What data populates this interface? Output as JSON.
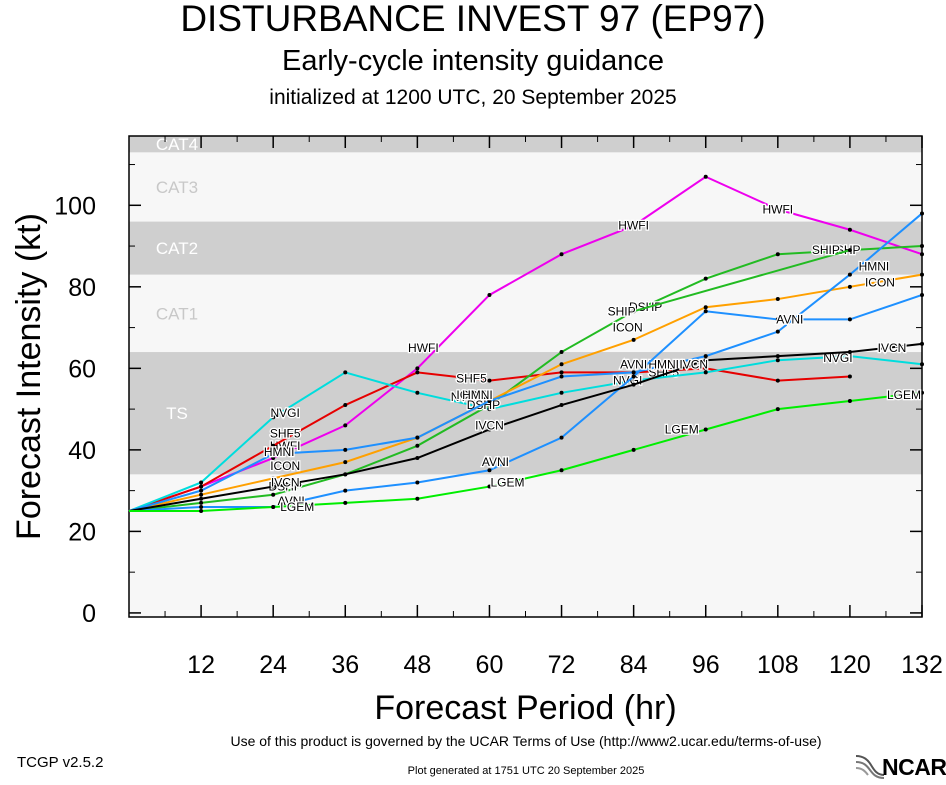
{
  "header": {
    "title": "DISTURBANCE INVEST 97 (EP97)",
    "subtitle": "Early-cycle intensity guidance",
    "init": "initialized at 1200 UTC, 20 September 2025"
  },
  "footer": {
    "terms": "Use of this product is governed by the UCAR Terms of Use (http://www2.ucar.edu/terms-of-use)",
    "version": "TCGP v2.5.2",
    "generated": "Plot generated at 1751 UTC   20 September 2025",
    "logo_text": "NCAR"
  },
  "chart_data": {
    "type": "line",
    "xlabel": "Forecast Period (hr)",
    "ylabel": "Forecast Intensity (kt)",
    "xlim": [
      0,
      132
    ],
    "ylim": [
      -1,
      117
    ],
    "x_ticks": [
      12,
      24,
      36,
      48,
      60,
      72,
      84,
      96,
      108,
      120,
      132
    ],
    "y_ticks": [
      0,
      20,
      40,
      60,
      80,
      100
    ],
    "bands": [
      {
        "label": "TS",
        "y0": 34,
        "y1": 64,
        "shade": "dark"
      },
      {
        "label": "CAT1",
        "y0": 64,
        "y1": 83,
        "shade": "light"
      },
      {
        "label": "CAT2",
        "y0": 83,
        "y1": 96,
        "shade": "dark"
      },
      {
        "label": "CAT3",
        "y0": 96,
        "y1": 113,
        "shade": "light"
      },
      {
        "label": "CAT4",
        "y0": 113,
        "y1": 117,
        "shade": "dark"
      }
    ],
    "band_colors": {
      "dark": "#cfcfcf",
      "light": "#f7f7f7"
    },
    "series": [
      {
        "name": "HWFI",
        "color": "#ee00ee",
        "x": [
          0,
          12,
          24,
          36,
          48,
          60,
          72,
          84,
          96,
          108,
          120,
          132
        ],
        "y": [
          25,
          31,
          38,
          46,
          60,
          78,
          88,
          95,
          107,
          99,
          94,
          88
        ],
        "labels": [
          [
            26,
            41
          ],
          [
            49,
            65
          ],
          [
            84,
            95
          ],
          [
            108,
            99
          ]
        ]
      },
      {
        "name": "SHF5",
        "color": "#e60000",
        "x": [
          0,
          12,
          24,
          36,
          48,
          60,
          72,
          84,
          96,
          108,
          120
        ],
        "y": [
          25,
          31,
          41,
          51,
          59,
          57,
          59,
          59,
          60,
          57,
          58
        ],
        "labels": [
          [
            26,
            44
          ],
          [
            57,
            57.5
          ],
          [
            89,
            59
          ]
        ]
      },
      {
        "name": "NVGI",
        "color": "#00dddd",
        "x": [
          0,
          12,
          24,
          36,
          48,
          60,
          72,
          84,
          96,
          108,
          120,
          132
        ],
        "y": [
          25,
          32,
          48,
          59,
          54,
          50,
          54,
          57,
          59,
          62,
          63,
          61
        ],
        "labels": [
          [
            26,
            49
          ],
          [
            56,
            53
          ],
          [
            83,
            57
          ],
          [
            118,
            62.5
          ]
        ]
      },
      {
        "name": "DSHP",
        "color": "#22bb22",
        "x": [
          0,
          12,
          24,
          36,
          48,
          60,
          72,
          84,
          96,
          108,
          120,
          132
        ],
        "y": [
          25,
          27,
          29,
          34,
          41,
          51,
          64,
          74,
          82,
          88,
          89,
          90
        ],
        "labels": [
          [
            26,
            31
          ],
          [
            59,
            51
          ],
          [
            86,
            75
          ],
          [
            119,
            89
          ]
        ]
      },
      {
        "name": "SHIP",
        "color": "#22bb22",
        "x": [
          84,
          120
        ],
        "y": [
          74,
          89
        ],
        "labels": [
          [
            82,
            74
          ],
          [
            116,
            89
          ]
        ]
      },
      {
        "name": "ICON",
        "color": "#ffa000",
        "x": [
          0,
          12,
          24,
          36,
          48,
          60,
          72,
          84,
          96,
          108,
          120,
          132
        ],
        "y": [
          25,
          29,
          33,
          37,
          43,
          52,
          61,
          67,
          75,
          77,
          80,
          83
        ],
        "labels": [
          [
            26,
            36
          ],
          [
            57,
            53.5
          ],
          [
            83,
            70
          ],
          [
            125,
            81
          ]
        ]
      },
      {
        "name": "HMNI",
        "color": "#1e90ff",
        "x": [
          0,
          12,
          24,
          36,
          48,
          60,
          72,
          84,
          96,
          108,
          120,
          132
        ],
        "y": [
          25,
          30,
          39,
          40,
          43,
          52,
          58,
          59,
          63,
          69,
          83,
          98
        ],
        "labels": [
          [
            25,
            39.5
          ],
          [
            58,
            53.5
          ],
          [
            89,
            61
          ],
          [
            124,
            85
          ]
        ]
      },
      {
        "name": "AVNI",
        "color": "#1e90ff",
        "x": [
          0,
          12,
          24,
          36,
          48,
          60,
          72,
          84,
          96,
          108,
          120,
          132
        ],
        "y": [
          25,
          26,
          26,
          30,
          32,
          35,
          43,
          58,
          74,
          72,
          72,
          78
        ],
        "labels": [
          [
            27,
            27.5
          ],
          [
            61,
            37
          ],
          [
            84,
            61
          ],
          [
            110,
            72
          ]
        ]
      },
      {
        "name": "IVCN",
        "color": "#000000",
        "x": [
          0,
          12,
          24,
          36,
          48,
          60,
          72,
          84,
          96,
          108,
          120,
          132
        ],
        "y": [
          25,
          28,
          31,
          34,
          38,
          45,
          51,
          56,
          62,
          63,
          64,
          66
        ],
        "labels": [
          [
            26,
            32
          ],
          [
            60,
            46
          ],
          [
            94,
            61
          ],
          [
            127,
            65
          ]
        ]
      },
      {
        "name": "LGEM",
        "color": "#00ee00",
        "x": [
          0,
          12,
          24,
          36,
          48,
          60,
          72,
          84,
          96,
          108,
          120,
          132
        ],
        "y": [
          25,
          25,
          26,
          27,
          28,
          31,
          35,
          40,
          45,
          50,
          52,
          54
        ],
        "labels": [
          [
            28,
            26
          ],
          [
            63,
            32
          ],
          [
            92,
            45
          ],
          [
            129,
            53.5
          ]
        ]
      }
    ]
  }
}
